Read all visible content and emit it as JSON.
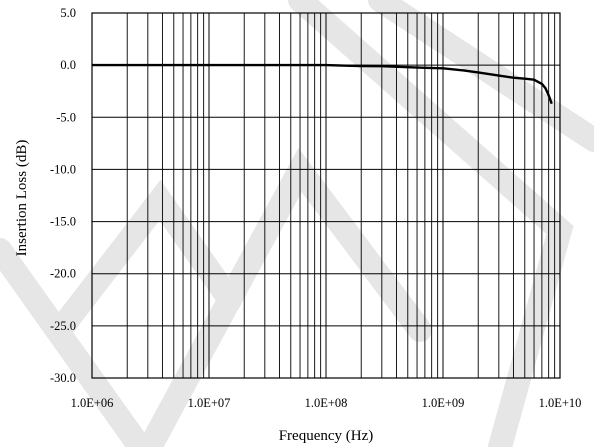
{
  "chart_data": {
    "type": "line",
    "title": "",
    "xlabel": "Frequency (Hz)",
    "ylabel": "Insertion Loss (dB)",
    "x_scale": "log",
    "xlim": [
      1000000,
      10000000000
    ],
    "ylim": [
      -30,
      5
    ],
    "grid": true,
    "legend": "none",
    "x_ticks": [
      {
        "value": 1000000,
        "label": "1.0E+06"
      },
      {
        "value": 10000000,
        "label": "1.0E+07"
      },
      {
        "value": 100000000,
        "label": "1.0E+08"
      },
      {
        "value": 1000000000,
        "label": "1.0E+09"
      },
      {
        "value": 10000000000,
        "label": "1.0E+10"
      }
    ],
    "y_ticks": [
      {
        "value": 5,
        "label": "5.0"
      },
      {
        "value": 0,
        "label": "0.0"
      },
      {
        "value": -5,
        "label": "-5.0"
      },
      {
        "value": -10,
        "label": "-10.0"
      },
      {
        "value": -15,
        "label": "-15.0"
      },
      {
        "value": -20,
        "label": "-20.0"
      },
      {
        "value": -25,
        "label": "-25.0"
      },
      {
        "value": -30,
        "label": "-30.0"
      }
    ],
    "series": [
      {
        "color": "#000000",
        "x": [
          1000000,
          3000000,
          10000000,
          30000000,
          100000000,
          150000000,
          200000000,
          300000000,
          500000000,
          700000000,
          1000000000,
          1500000000,
          2000000000,
          3000000000,
          4000000000,
          5000000000,
          6000000000,
          7000000000,
          7500000000,
          8000000000,
          8500000000
        ],
        "y": [
          0.0,
          0.0,
          0.0,
          0.0,
          0.0,
          -0.05,
          -0.08,
          -0.1,
          -0.2,
          -0.25,
          -0.3,
          -0.5,
          -0.7,
          -1.0,
          -1.2,
          -1.3,
          -1.4,
          -1.8,
          -2.2,
          -2.9,
          -3.7
        ]
      }
    ]
  },
  "watermark": {
    "color": "#e6e6e6"
  }
}
